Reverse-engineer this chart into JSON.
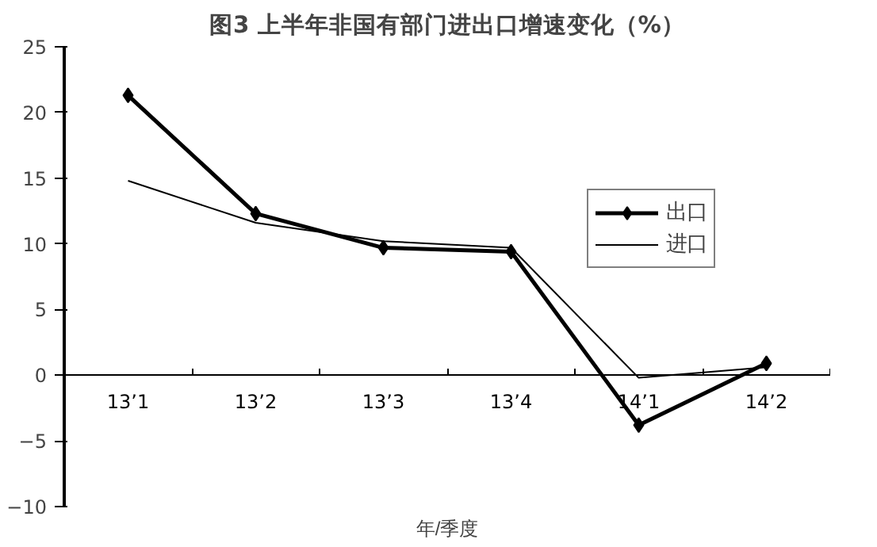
{
  "chart_data": {
    "type": "line",
    "title": "图3 上半年非国有部门进出口增速变化（%）",
    "xlabel": "年/季度",
    "categories": [
      "13’1",
      "13’2",
      "13’3",
      "13’4",
      "14’1",
      "14’2"
    ],
    "series": [
      {
        "name": "出口",
        "color": "#000000",
        "values": [
          21.3,
          12.3,
          9.7,
          9.4,
          -3.8,
          0.9
        ],
        "marker": "diamond"
      },
      {
        "name": "进口",
        "color": "#000000",
        "values": [
          14.8,
          11.6,
          10.2,
          9.7,
          -0.2,
          0.6
        ],
        "marker": "none"
      }
    ],
    "ylim": [
      -10,
      25
    ],
    "yticks": [
      -10,
      -5,
      0,
      5,
      10,
      15,
      20,
      25
    ],
    "grid": false,
    "legend": "right",
    "line_style": "solid"
  }
}
